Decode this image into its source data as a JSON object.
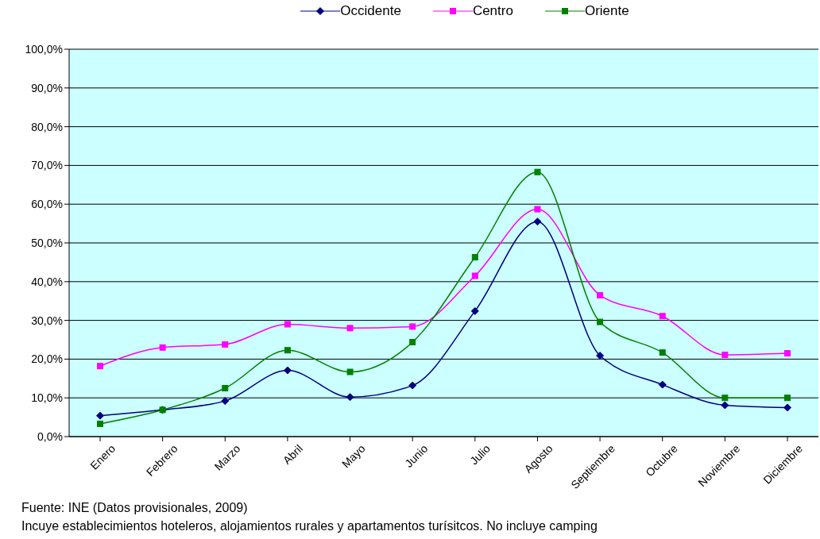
{
  "chart_data": {
    "type": "line",
    "categories": [
      "Enero",
      "Febrero",
      "Marzo",
      "Abril",
      "Mayo",
      "Junio",
      "Julio",
      "Agosto",
      "Septiembre",
      "Octubre",
      "Noviembre",
      "Diciembre"
    ],
    "series": [
      {
        "name": "Occidente",
        "color": "#000080",
        "marker": "diamond",
        "values": [
          5.4,
          6.9,
          9.2,
          17.1,
          10.2,
          13.2,
          32.4,
          55.5,
          20.9,
          13.4,
          8.1,
          7.5
        ]
      },
      {
        "name": "Centro",
        "color": "#ff00ff",
        "marker": "square",
        "values": [
          18.2,
          23.0,
          23.8,
          29.0,
          28.0,
          28.4,
          41.5,
          58.7,
          36.5,
          31.1,
          21.1,
          21.5
        ]
      },
      {
        "name": "Oriente",
        "color": "#008000",
        "marker": "square",
        "values": [
          3.3,
          6.9,
          12.5,
          22.3,
          16.7,
          24.4,
          46.3,
          68.3,
          29.6,
          21.7,
          10.0,
          10.0
        ]
      }
    ],
    "ylim": [
      0,
      100
    ],
    "yticks": [
      {
        "value": 0,
        "label": "0,0%"
      },
      {
        "value": 10,
        "label": "10,0%"
      },
      {
        "value": 20,
        "label": "20,0%"
      },
      {
        "value": 30,
        "label": "30,0%"
      },
      {
        "value": 40,
        "label": "40,0%"
      },
      {
        "value": 50,
        "label": "50,0%"
      },
      {
        "value": 60,
        "label": "60,0%"
      },
      {
        "value": 70,
        "label": "70,0%"
      },
      {
        "value": 80,
        "label": "80,0%"
      },
      {
        "value": 90,
        "label": "90,0%"
      },
      {
        "value": 100,
        "label": "100,0%"
      }
    ],
    "grid": "y",
    "legend": "top",
    "annotations": [
      "Fuente: INE (Datos provisionales, 2009)",
      "Incuye establecimientos hoteleros, alojamientos rurales y apartamentos turísitcos. No incluye camping"
    ]
  }
}
